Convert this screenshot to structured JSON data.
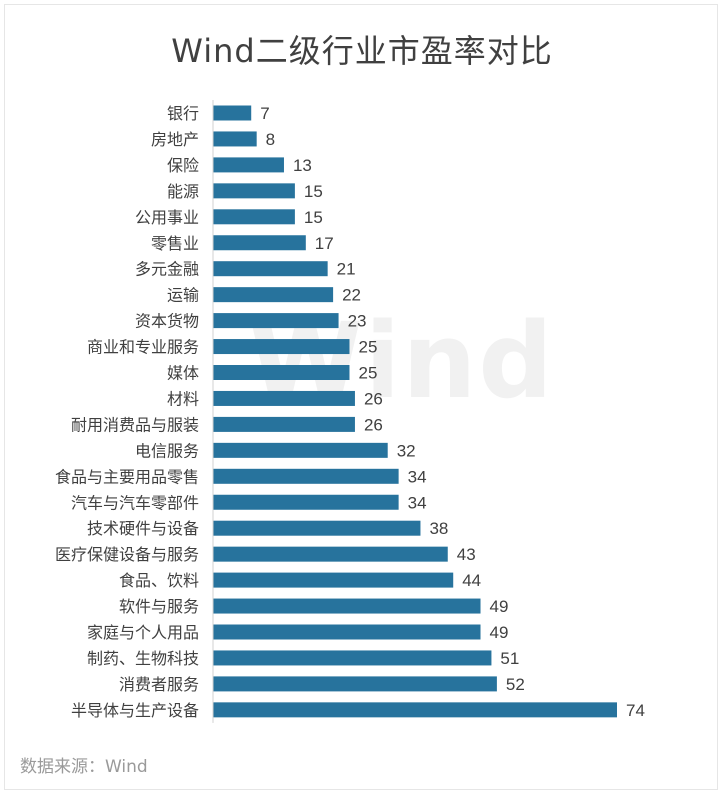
{
  "chart_data": {
    "type": "bar",
    "orientation": "horizontal",
    "title": "Wind二级行业市盈率对比",
    "categories": [
      "银行",
      "房地产",
      "保险",
      "能源",
      "公用事业",
      "零售业",
      "多元金融",
      "运输",
      "资本货物",
      "商业和专业服务",
      "媒体",
      "材料",
      "耐用消费品与服装",
      "电信服务",
      "食品与主要用品零售",
      "汽车与汽车零部件",
      "技术硬件与设备",
      "医疗保健设备与服务",
      "食品、饮料",
      "软件与服务",
      "家庭与个人用品",
      "制药、生物科技",
      "消费者服务",
      "半导体与生产设备"
    ],
    "values": [
      7,
      8,
      13,
      15,
      15,
      17,
      21,
      22,
      23,
      25,
      25,
      26,
      26,
      32,
      34,
      34,
      38,
      43,
      44,
      49,
      49,
      51,
      52,
      74
    ],
    "xlim": [
      0,
      74
    ],
    "bar_color": "#27739d",
    "grid": false,
    "legend": "none"
  },
  "watermark": "Wind",
  "source": "数据来源：Wind"
}
